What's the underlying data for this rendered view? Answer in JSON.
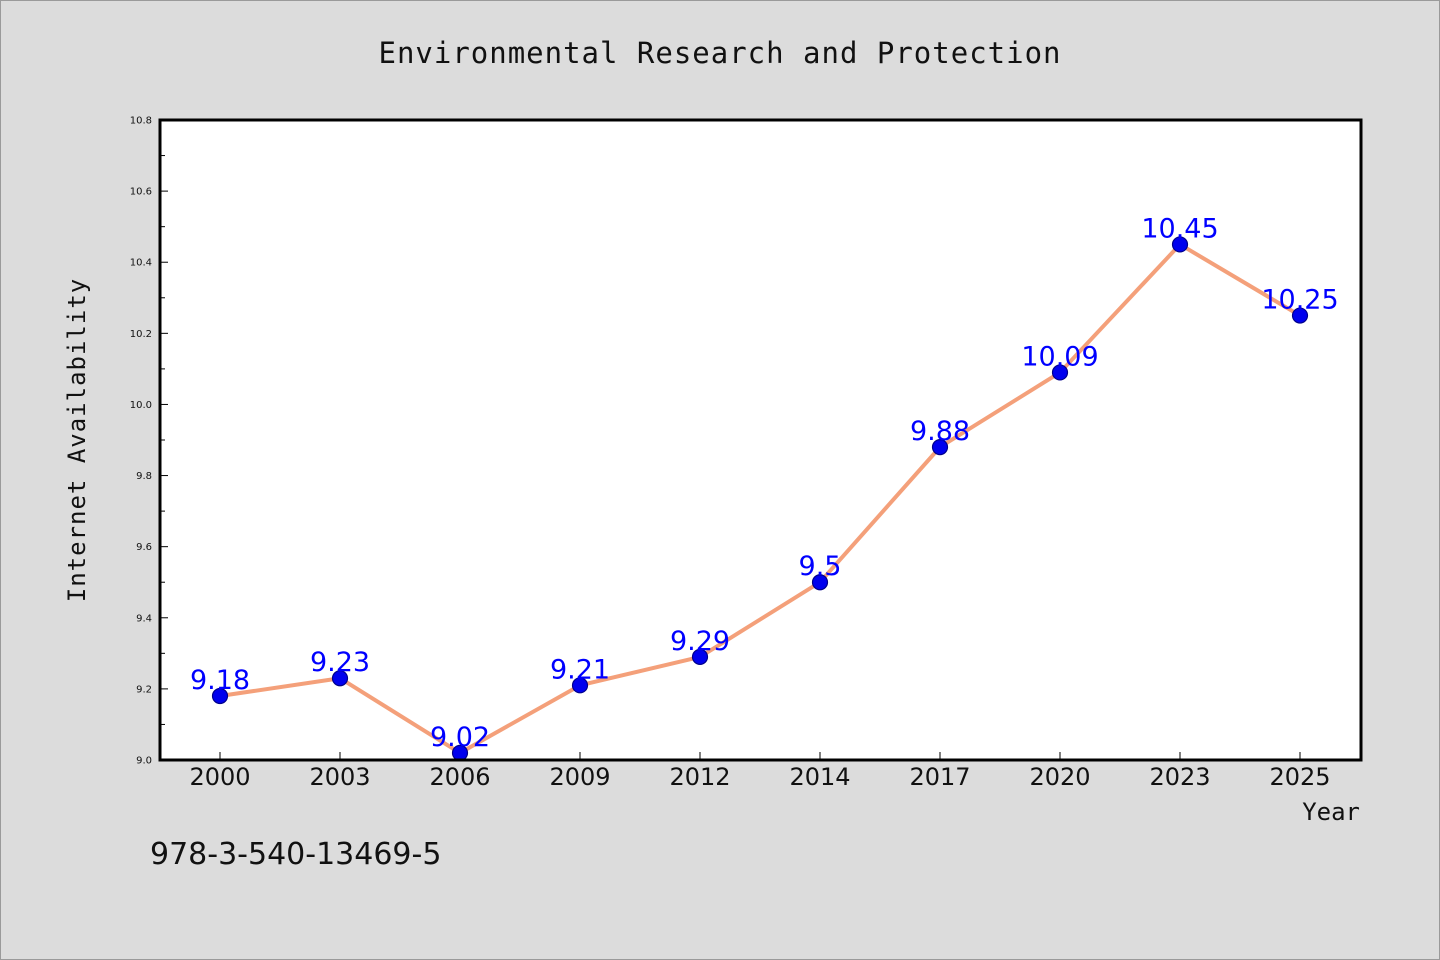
{
  "chart_data": {
    "type": "line",
    "title": "Environmental Research and Protection",
    "xlabel": "Year",
    "ylabel": "Internet Availability",
    "categories": [
      "2000",
      "2003",
      "2006",
      "2009",
      "2012",
      "2014",
      "2017",
      "2020",
      "2023",
      "2025"
    ],
    "series": [
      {
        "values": [
          9.18,
          9.23,
          9.02,
          9.21,
          9.29,
          9.5,
          9.88,
          10.09,
          10.45,
          10.25
        ],
        "data_labels": [
          "9.18",
          "9.23",
          "9.02",
          "9.21",
          "9.29",
          "9.5",
          "9.88",
          "10.09",
          "10.45",
          "10.25"
        ]
      }
    ],
    "ylim": [
      9.0,
      10.8
    ],
    "y_ticks": [
      "9.0",
      "9.2",
      "9.4",
      "9.6",
      "9.8",
      "10.0",
      "10.2",
      "10.4",
      "10.6",
      "10.8"
    ],
    "grid": false,
    "legend": "none",
    "colors": {
      "line": "#f4a07a",
      "marker_fill": "#0000ee",
      "marker_edge": "#00008b",
      "data_label": "#0000ff",
      "plot_bg": "#ffffff",
      "figure_bg": "#dcdcdc"
    }
  },
  "annotation": {
    "isbn": "978-3-540-13469-5"
  }
}
